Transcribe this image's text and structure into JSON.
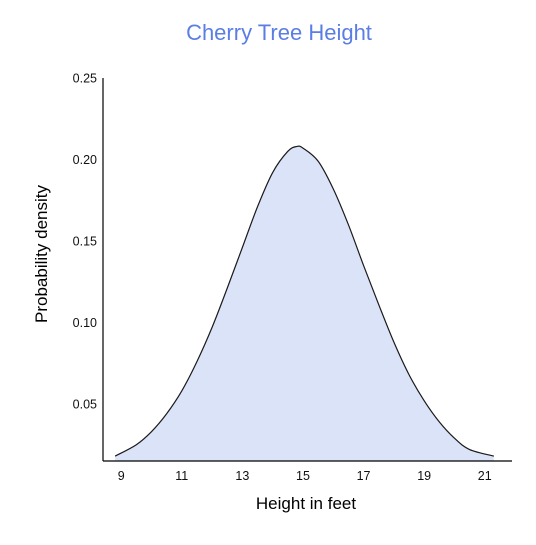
{
  "chart_data": {
    "type": "area",
    "title": "Cherry Tree Height",
    "xlabel": "Height in feet",
    "ylabel": "Probability density",
    "xlim": [
      8.4,
      21.9
    ],
    "ylim": [
      0.015,
      0.25
    ],
    "x_ticks": [
      "9",
      "11",
      "13",
      "15",
      "17",
      "19",
      "21"
    ],
    "y_ticks": [
      "0.05",
      "0.10",
      "0.15",
      "0.20",
      "0.25"
    ],
    "x": [
      8.8,
      9.5,
      10,
      10.5,
      11,
      11.5,
      12,
      12.5,
      13,
      13.5,
      14,
      14.5,
      14.8,
      15,
      15.5,
      16,
      16.5,
      17,
      17.5,
      18,
      18.5,
      19,
      19.5,
      20,
      20.5,
      21.3
    ],
    "y": [
      0.018,
      0.025,
      0.033,
      0.044,
      0.058,
      0.076,
      0.097,
      0.121,
      0.146,
      0.171,
      0.192,
      0.205,
      0.208,
      0.207,
      0.199,
      0.182,
      0.16,
      0.135,
      0.111,
      0.088,
      0.068,
      0.052,
      0.039,
      0.029,
      0.022,
      0.018
    ],
    "grid": false,
    "legend": "none",
    "colors": {
      "title": "#5b7ee5",
      "fill": "#dae3f8",
      "line": "#1a1a1a",
      "axis": "#000000"
    }
  }
}
